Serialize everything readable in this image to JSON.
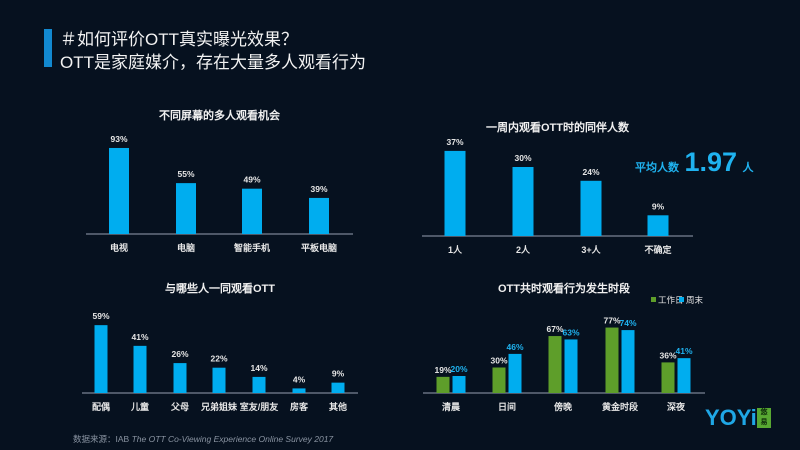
{
  "header": {
    "question": "＃如何评价OTT真实曝光效果？",
    "statement": "OTT是家庭媒介，存在大量多人观看行为"
  },
  "colors": {
    "blue": "#00adef",
    "green": "#5e9e2a",
    "axis": "#7a8494",
    "background": "#06111f"
  },
  "average": {
    "label": "平均人数",
    "value": "1.97",
    "unit": "人"
  },
  "source": {
    "prefix": "数据来源：IAB ",
    "title": "The OTT Co-Viewing Experience Online Survey 2017"
  },
  "logo": {
    "text": "YOYi",
    "cn_top": "悠",
    "cn_bottom": "易"
  },
  "chart_data": [
    {
      "type": "bar",
      "title": "不同屏幕的多人观看机会",
      "categories": [
        "电视",
        "电脑",
        "智能手机",
        "平板电脑"
      ],
      "values": [
        93,
        55,
        49,
        39
      ],
      "value_labels": [
        "93%",
        "55%",
        "49%",
        "39%"
      ],
      "unit": "%",
      "ylim": [
        0,
        100
      ],
      "grid": false
    },
    {
      "type": "bar",
      "title": "一周内观看OTT时的同伴人数",
      "categories": [
        "1人",
        "2人",
        "3+人",
        "不确定"
      ],
      "values": [
        37,
        30,
        24,
        9
      ],
      "value_labels": [
        "37%",
        "30%",
        "24%",
        "9%"
      ],
      "unit": "%",
      "ylim": [
        0,
        45
      ],
      "grid": false
    },
    {
      "type": "bar",
      "title": "与哪些人一同观看OTT",
      "categories": [
        "配偶",
        "儿童",
        "父母",
        "兄弟姐妹",
        "室友/朋友",
        "房客",
        "其他"
      ],
      "values": [
        59,
        41,
        26,
        22,
        14,
        4,
        9
      ],
      "value_labels": [
        "59%",
        "41%",
        "26%",
        "22%",
        "14%",
        "4%",
        "9%"
      ],
      "unit": "%",
      "ylim": [
        0,
        70
      ],
      "grid": false
    },
    {
      "type": "bar",
      "title": "OTT共时观看行为发生时段",
      "categories": [
        "清晨",
        "日间",
        "傍晚",
        "黄金时段",
        "深夜"
      ],
      "series": [
        {
          "name": "工作日",
          "values": [
            19,
            30,
            67,
            77,
            36
          ],
          "labels": [
            "19%",
            "30%",
            "67%",
            "77%",
            "36%"
          ]
        },
        {
          "name": "周末",
          "values": [
            20,
            46,
            63,
            74,
            41
          ],
          "labels": [
            "20%",
            "46%",
            "63%",
            "74%",
            "41%"
          ]
        }
      ],
      "unit": "%",
      "ylim": [
        0,
        90
      ],
      "legend": "top-right",
      "grid": false
    }
  ]
}
